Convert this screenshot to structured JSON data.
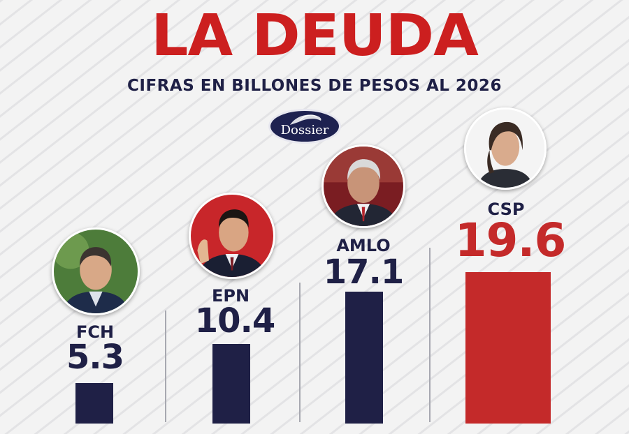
{
  "header": {
    "title": "LA DEUDA",
    "subtitle": "CIFRAS EN BILLONES DE PESOS AL 2026",
    "logo_text": "Dossier"
  },
  "colors": {
    "title": "#cc1f1f",
    "navy": "#1f2046",
    "red": "#c42a2a",
    "background": "#f3f3f3"
  },
  "chart_data": {
    "type": "bar",
    "title": "LA DEUDA",
    "subtitle": "CIFRAS EN BILLONES DE PESOS AL 2026",
    "categories": [
      "FCH",
      "EPN",
      "AMLO",
      "CSP"
    ],
    "values": [
      5.3,
      10.4,
      17.1,
      19.6
    ],
    "value_labels": [
      "5.3",
      "10.4",
      "17.1",
      "19.6"
    ],
    "bar_colors": [
      "#1f2046",
      "#1f2046",
      "#1f2046",
      "#c42a2a"
    ],
    "value_colors": [
      "#1f2046",
      "#1f2046",
      "#1f2046",
      "#c42a2a"
    ],
    "ylim": [
      0,
      19.6
    ],
    "grid": false
  }
}
